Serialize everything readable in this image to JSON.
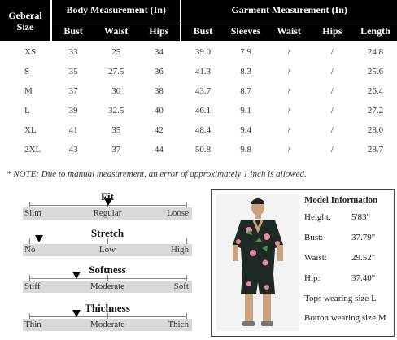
{
  "table": {
    "size_header": [
      "Geberal",
      "Size"
    ],
    "body_header": "Body Measurement  (In)",
    "garment_header": "Garment Measurement  (In)",
    "body_cols": [
      "Bust",
      "Waist",
      "Hips"
    ],
    "garment_cols": [
      "Bust",
      "Sleeves",
      "Waist",
      "Hips",
      "Length"
    ],
    "rows": [
      [
        "XS",
        "33",
        "25",
        "34",
        "39.0",
        "7.9",
        "/",
        "/",
        "24.8"
      ],
      [
        "S",
        "35",
        "27.5",
        "36",
        "41.3",
        "8.3",
        "/",
        "/",
        "25.6"
      ],
      [
        "M",
        "37",
        "30",
        "38",
        "43.7",
        "8.7",
        "/",
        "/",
        "26.4"
      ],
      [
        "L",
        "39",
        "32.5",
        "40",
        "46.1",
        "9.1",
        "/",
        "/",
        "27.2"
      ],
      [
        "XL",
        "41",
        "35",
        "42",
        "48.4",
        "9.4",
        "/",
        "/",
        "28.0"
      ],
      [
        "2XL",
        "43",
        "37",
        "44",
        "50.8",
        "9.8",
        "/",
        "/",
        "28.7"
      ]
    ]
  },
  "note": "* NOTE: Due to manual measurement, an error of approximately 1 inch is allowed.",
  "scales": [
    {
      "title": "Fit",
      "left": "Slim",
      "mid": "Regular",
      "right": "Loose",
      "level": 0.5
    },
    {
      "title": "Stretch",
      "left": "No",
      "mid": "Low",
      "right": "High",
      "level": 0.06
    },
    {
      "title": "Softness",
      "left": "Stiff",
      "mid": "Moderate",
      "right": "Soft",
      "level": 0.3
    },
    {
      "title": "Thichness",
      "left": "Thin",
      "mid": "Moderate",
      "right": "Thich",
      "level": 0.3
    }
  ],
  "model": {
    "title": "Model Information",
    "height_label": "Height:",
    "height_value": "5'83\"",
    "bust_label": "Bust:",
    "bust_value": "37.79\"",
    "waist_label": "Waist:",
    "waist_value": "29.52\"",
    "hip_label": "Hip:",
    "hip_value": "37.40\"",
    "tops": "Tops wearing size L",
    "bottom": "Botton wearing size M"
  }
}
